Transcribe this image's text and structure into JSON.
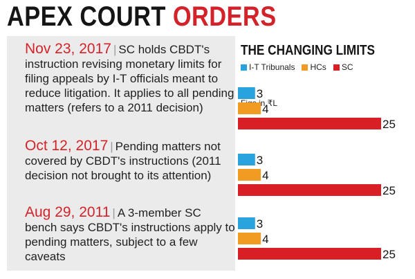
{
  "title": {
    "part1": "APEX COURT ",
    "part2": "ORDERS"
  },
  "entries": [
    {
      "date": "Nov 23, 2017",
      "text": "SC holds CBDT's instruction revising monetary limits for filing appeals by I-T officials meant to reduce litigation. It applies to all pending matters (refers to a 2011 decision)"
    },
    {
      "date": "Oct 12, 2017",
      "text": "Pending matters not covered by CBDT's instructions (2011 decision not brought to its attention)"
    },
    {
      "date": "Aug 29, 2011",
      "text": "A 3-member SC bench says CBDT's instructions apply to pending matters, subject to a few caveats"
    }
  ],
  "separator": "|",
  "colors": {
    "accent": "#d3232a",
    "panel": "#ebebeb",
    "it": "#29a3dd",
    "hc": "#f29b22",
    "sc": "#d91f26"
  },
  "chart_data": {
    "type": "bar",
    "orientation": "horizontal",
    "title": "THE CHANGING LIMITS",
    "units": "Figs in ₹L",
    "legend_position": "top",
    "xlim": [
      0,
      25
    ],
    "grid": false,
    "series": [
      {
        "name": "I-T Tribunals",
        "color": "#29a3dd"
      },
      {
        "name": "HCs",
        "color": "#f29b22"
      },
      {
        "name": "SC",
        "color": "#d91f26"
      }
    ],
    "groups": [
      {
        "values": [
          3,
          4,
          25
        ]
      },
      {
        "values": [
          3,
          4,
          25
        ]
      },
      {
        "values": [
          3,
          4,
          25
        ]
      }
    ]
  }
}
